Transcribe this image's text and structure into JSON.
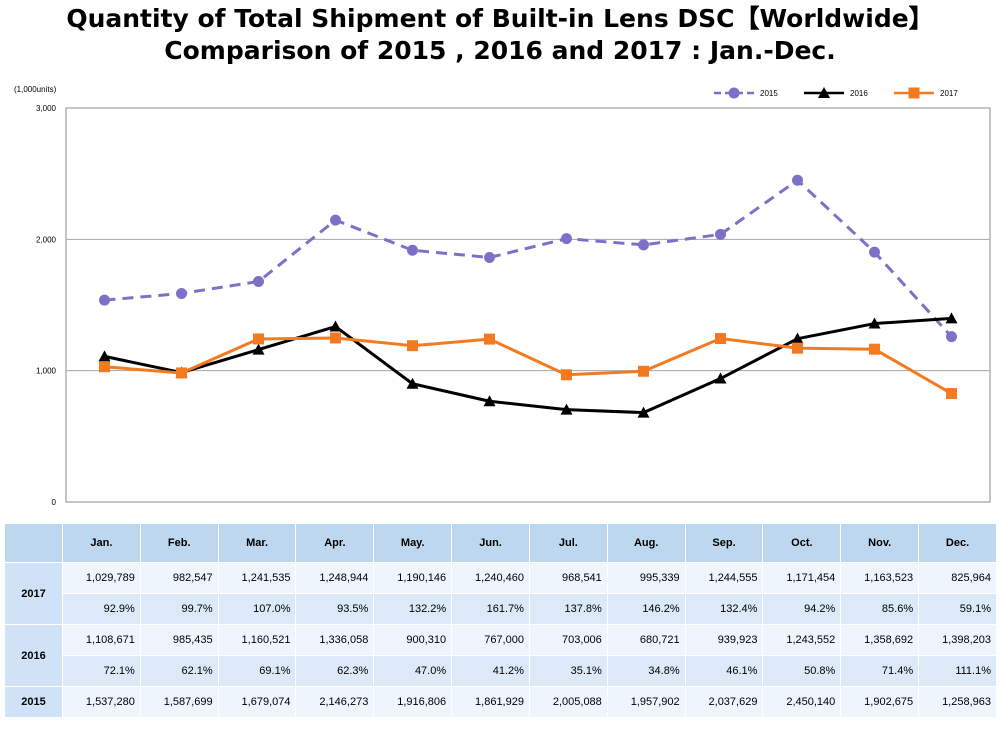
{
  "chart_data": {
    "type": "line",
    "title": "Quantity of Total Shipment of Built-in Lens DSC【Worldwide】",
    "subtitle": "Comparison of 2015 , 2016 and 2017 : Jan.-Dec.",
    "unit": "(1,000units)",
    "categories": [
      "Jan.",
      "Feb.",
      "Mar.",
      "Apr.",
      "May.",
      "Jun.",
      "Jul.",
      "Aug.",
      "Sep.",
      "Oct.",
      "Nov.",
      "Dec."
    ],
    "ylim": [
      0,
      3000
    ],
    "yticks": [
      "0",
      "1,000",
      "2,000",
      "3,000"
    ],
    "grid": true,
    "legend_position": "top-right",
    "series": [
      {
        "name": "2015",
        "color": "#7b72c8",
        "dash": "dashed",
        "marker": "circle",
        "values": [
          1537.28,
          1587.699,
          1679.074,
          2146.273,
          1916.806,
          1861.929,
          2005.088,
          1957.902,
          2037.629,
          2450.14,
          1902.675,
          1258.963
        ]
      },
      {
        "name": "2016",
        "color": "#000000",
        "dash": "solid",
        "marker": "triangle",
        "values": [
          1108.671,
          985.435,
          1160.521,
          1336.058,
          900.31,
          767.0,
          703.006,
          680.721,
          939.923,
          1243.552,
          1358.692,
          1398.203
        ]
      },
      {
        "name": "2017",
        "color": "#f47a20",
        "dash": "solid",
        "marker": "square",
        "values": [
          1029.789,
          982.547,
          1241.535,
          1248.944,
          1190.146,
          1240.46,
          968.541,
          995.339,
          1244.555,
          1171.454,
          1163.523,
          825.964
        ]
      }
    ]
  },
  "table": {
    "headers": [
      "",
      "Jan.",
      "Feb.",
      "Mar.",
      "Apr.",
      "May.",
      "Jun.",
      "Jul.",
      "Aug.",
      "Sep.",
      "Oct.",
      "Nov.",
      "Dec."
    ],
    "rows": [
      {
        "year": "2017",
        "units": [
          "1,029,789",
          "982,547",
          "1,241,535",
          "1,248,944",
          "1,190,146",
          "1,240,460",
          "968,541",
          "995,339",
          "1,244,555",
          "1,171,454",
          "1,163,523",
          "825,964"
        ],
        "pct": [
          "92.9%",
          "99.7%",
          "107.0%",
          "93.5%",
          "132.2%",
          "161.7%",
          "137.8%",
          "146.2%",
          "132.4%",
          "94.2%",
          "85.6%",
          "59.1%"
        ]
      },
      {
        "year": "2016",
        "units": [
          "1,108,671",
          "985,435",
          "1,160,521",
          "1,336,058",
          "900,310",
          "767,000",
          "703,006",
          "680,721",
          "939,923",
          "1,243,552",
          "1,358,692",
          "1,398,203"
        ],
        "pct": [
          "72.1%",
          "62.1%",
          "69.1%",
          "62.3%",
          "47.0%",
          "41.2%",
          "35.1%",
          "34.8%",
          "46.1%",
          "50.8%",
          "71.4%",
          "111.1%"
        ]
      },
      {
        "year": "2015",
        "units": [
          "1,537,280",
          "1,587,699",
          "1,679,074",
          "2,146,273",
          "1,916,806",
          "1,861,929",
          "2,005,088",
          "1,957,902",
          "2,037,629",
          "2,450,140",
          "1,902,675",
          "1,258,963"
        ]
      }
    ]
  }
}
